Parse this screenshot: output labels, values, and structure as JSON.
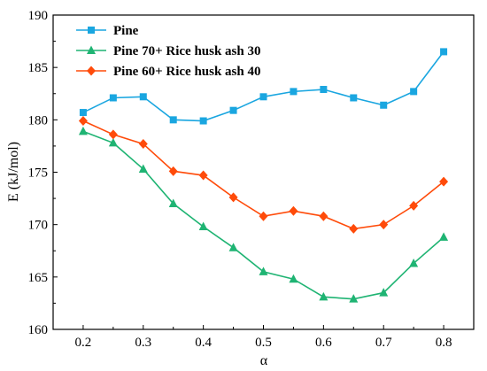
{
  "chart_data": {
    "type": "line",
    "title": "",
    "xlabel": "α",
    "ylabel": "E (kJ/mol)",
    "xlim": [
      0.15,
      0.85
    ],
    "ylim": [
      160,
      190
    ],
    "xticks": [
      "0.2",
      "0.3",
      "0.4",
      "0.5",
      "0.6",
      "0.7",
      "0.8"
    ],
    "yticks": [
      "160",
      "165",
      "170",
      "175",
      "180",
      "185",
      "190"
    ],
    "grid": false,
    "legend_position": "top-left",
    "x": [
      0.2,
      0.25,
      0.3,
      0.35,
      0.4,
      0.45,
      0.5,
      0.55,
      0.6,
      0.65,
      0.7,
      0.75,
      0.8
    ],
    "series": [
      {
        "name": "Pine",
        "marker": "square",
        "color": "#1aa6e0",
        "values": [
          180.7,
          182.1,
          182.2,
          180.0,
          179.9,
          180.9,
          182.2,
          182.7,
          182.9,
          182.1,
          181.4,
          182.7,
          186.5
        ]
      },
      {
        "name": "Pine 70+ Rice husk ash 30",
        "marker": "triangle",
        "color": "#1fb473",
        "values": [
          178.9,
          177.8,
          175.3,
          172.0,
          169.8,
          167.8,
          165.5,
          164.8,
          163.1,
          162.9,
          163.5,
          166.3,
          168.8
        ]
      },
      {
        "name": "Pine 60+ Rice husk ash 40",
        "marker": "diamond",
        "color": "#ff4b0a",
        "values": [
          179.9,
          178.6,
          177.7,
          175.1,
          174.7,
          172.6,
          170.8,
          171.3,
          170.8,
          169.6,
          170.0,
          171.8,
          174.1
        ]
      }
    ]
  }
}
